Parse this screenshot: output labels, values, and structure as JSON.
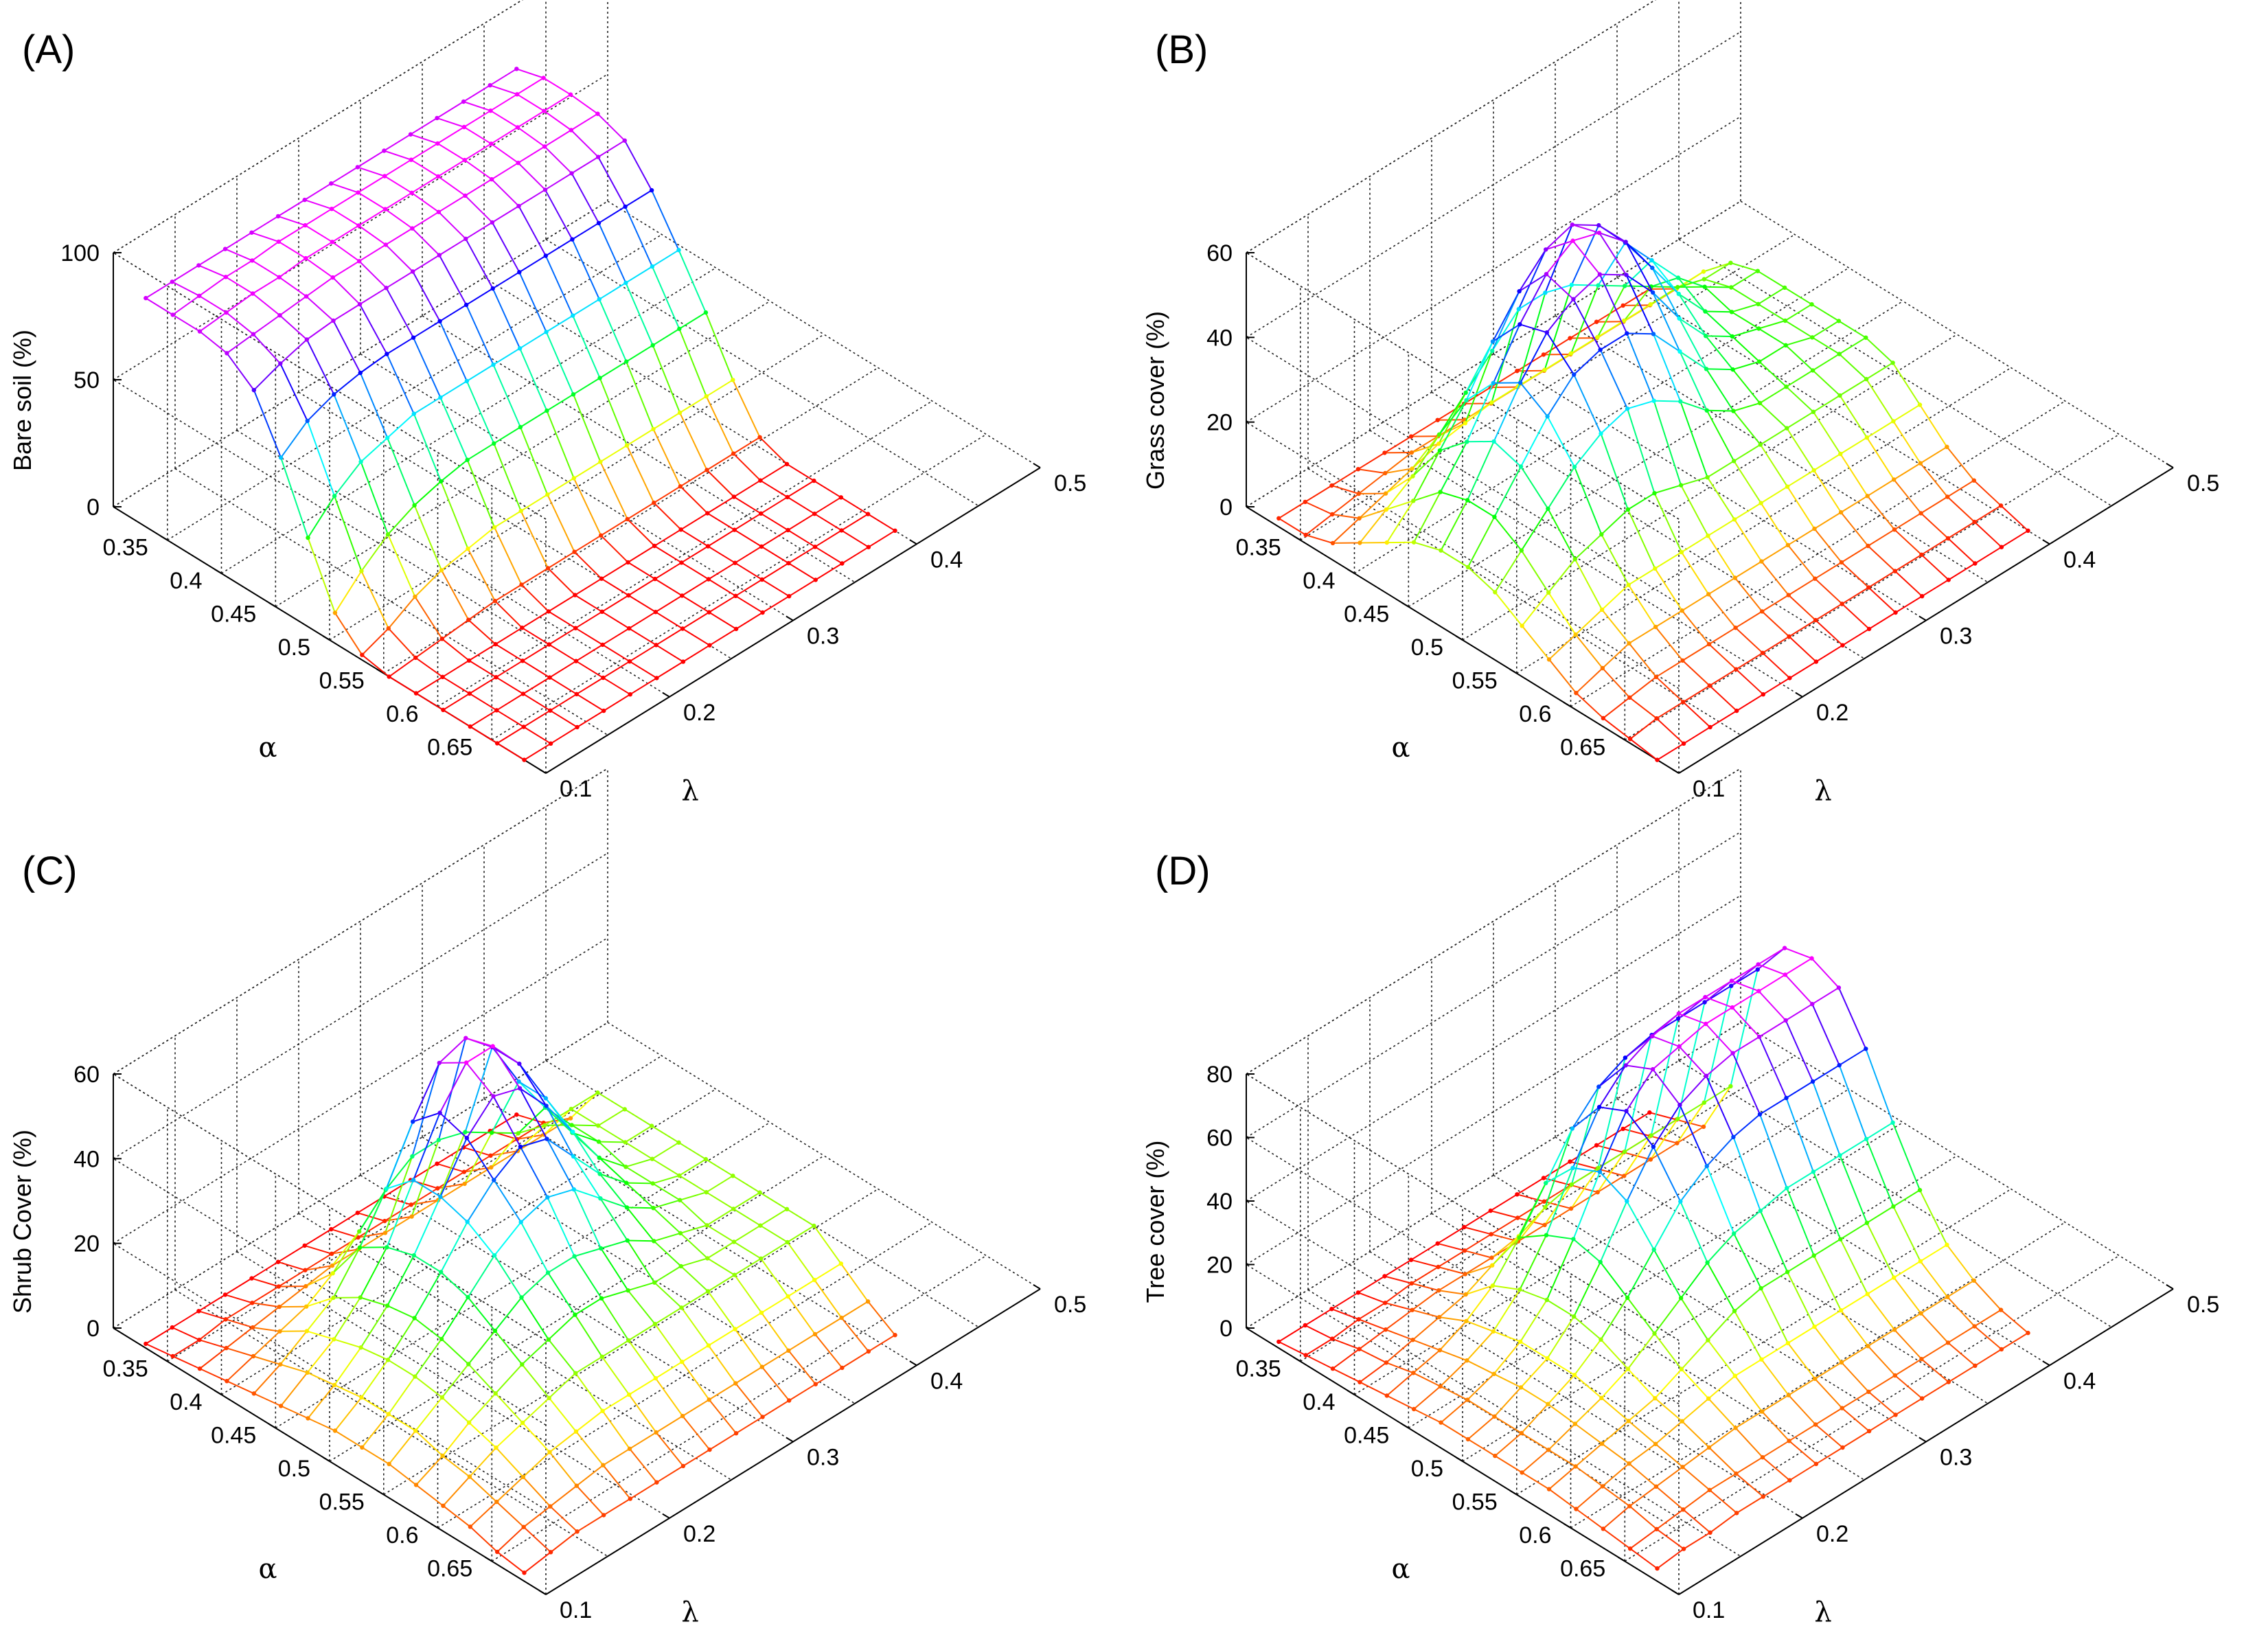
{
  "chart_data": [
    {
      "panel": "(A)",
      "type": "surface",
      "zlabel": "Bare soil (%)",
      "xlabel": "α",
      "ylabel": "λ",
      "alpha_ticks": [
        "0.35",
        "0.4",
        "0.45",
        "0.5",
        "0.55",
        "0.6",
        "0.65"
      ],
      "lambda_ticks": [
        "0.1",
        "0.2",
        "0.3",
        "0.4",
        "0.5"
      ],
      "z_ticks": [
        "0",
        "50",
        "100"
      ],
      "zlim": [
        0,
        100
      ],
      "alpha_range": [
        0.3,
        0.7
      ],
      "lambda_range": [
        0.1,
        0.5
      ],
      "grid": true,
      "surface_alpha": [
        0.33,
        0.68
      ],
      "surface_lambda": [
        0.1,
        0.4
      ],
      "grid_size": [
        15,
        15
      ],
      "z": [
        [
          90,
          90,
          90,
          90,
          90,
          90,
          90,
          90,
          90,
          90,
          90,
          90,
          90,
          90,
          90
        ],
        [
          90,
          91,
          92,
          92,
          93,
          93,
          93,
          93,
          93,
          93,
          93,
          93,
          93,
          93,
          93
        ],
        [
          90,
          91,
          92,
          92,
          93,
          93,
          93,
          93,
          93,
          93,
          93,
          93,
          93,
          93,
          93
        ],
        [
          88,
          89,
          90,
          91,
          92,
          92,
          92,
          92,
          92,
          92,
          92,
          92,
          92,
          92,
          92
        ],
        [
          80,
          84,
          87,
          88,
          88,
          88,
          88,
          88,
          88,
          88,
          88,
          88,
          88,
          88,
          88
        ],
        [
          60,
          68,
          72,
          74,
          75,
          75,
          75,
          75,
          75,
          75,
          75,
          75,
          75,
          75,
          75
        ],
        [
          35,
          45,
          52,
          55,
          58,
          58,
          58,
          58,
          58,
          58,
          58,
          58,
          58,
          58,
          58
        ],
        [
          12,
          22,
          30,
          35,
          38,
          40,
          40,
          40,
          40,
          40,
          40,
          40,
          40,
          40,
          40
        ],
        [
          2,
          6,
          12,
          16,
          18,
          20,
          20,
          20,
          20,
          20,
          20,
          20,
          20,
          20,
          20
        ],
        [
          0,
          1,
          2,
          3,
          4,
          4,
          4,
          4,
          4,
          4,
          4,
          4,
          4,
          4,
          4
        ],
        [
          0,
          0,
          0,
          0,
          0,
          0,
          0,
          0,
          0,
          0,
          0,
          0,
          0,
          0,
          0
        ],
        [
          0,
          0,
          0,
          0,
          0,
          0,
          0,
          0,
          0,
          0,
          0,
          0,
          0,
          0,
          0
        ],
        [
          0,
          0,
          0,
          0,
          0,
          0,
          0,
          0,
          0,
          0,
          0,
          0,
          0,
          0,
          0
        ],
        [
          0,
          0,
          0,
          0,
          0,
          0,
          0,
          0,
          0,
          0,
          0,
          0,
          0,
          0,
          0
        ],
        [
          0,
          0,
          0,
          0,
          0,
          0,
          0,
          0,
          0,
          0,
          0,
          0,
          0,
          0,
          0
        ]
      ]
    },
    {
      "panel": "(B)",
      "type": "surface",
      "zlabel": "Grass cover (%)",
      "xlabel": "α",
      "ylabel": "λ",
      "alpha_ticks": [
        "0.35",
        "0.4",
        "0.45",
        "0.5",
        "0.55",
        "0.6",
        "0.65"
      ],
      "lambda_ticks": [
        "0.1",
        "0.2",
        "0.3",
        "0.4",
        "0.5"
      ],
      "z_ticks": [
        "0",
        "20",
        "40",
        "60"
      ],
      "zlim": [
        0,
        60
      ],
      "alpha_range": [
        0.3,
        0.7
      ],
      "lambda_range": [
        0.1,
        0.5
      ],
      "grid": true,
      "surface_alpha": [
        0.33,
        0.68
      ],
      "surface_lambda": [
        0.1,
        0.4
      ],
      "grid_size": [
        15,
        15
      ],
      "z": [
        [
          2,
          2,
          2,
          2,
          2,
          2,
          2,
          2,
          2,
          2,
          2,
          2,
          2,
          2,
          2
        ],
        [
          2,
          3,
          4,
          5,
          6,
          6,
          6,
          6,
          6,
          6,
          6,
          6,
          6,
          6,
          6
        ],
        [
          4,
          6,
          8,
          10,
          12,
          13,
          14,
          14,
          14,
          14,
          14,
          14,
          14,
          14,
          14
        ],
        [
          8,
          12,
          16,
          22,
          28,
          34,
          40,
          40,
          38,
          34,
          30,
          26,
          22,
          20,
          20
        ],
        [
          12,
          18,
          26,
          34,
          44,
          52,
          58,
          60,
          56,
          48,
          40,
          32,
          26,
          22,
          22
        ],
        [
          16,
          24,
          32,
          42,
          52,
          60,
          64,
          62,
          56,
          46,
          36,
          28,
          24,
          22,
          22
        ],
        [
          18,
          26,
          36,
          46,
          54,
          58,
          60,
          56,
          48,
          38,
          30,
          26,
          24,
          22,
          22
        ],
        [
          18,
          26,
          34,
          42,
          48,
          50,
          50,
          46,
          38,
          30,
          26,
          24,
          24,
          22,
          22
        ],
        [
          16,
          22,
          28,
          34,
          38,
          40,
          38,
          34,
          28,
          24,
          22,
          22,
          22,
          22,
          22
        ],
        [
          12,
          16,
          20,
          22,
          24,
          24,
          22,
          20,
          20,
          20,
          20,
          20,
          20,
          20,
          20
        ],
        [
          8,
          10,
          12,
          14,
          14,
          14,
          14,
          14,
          14,
          14,
          14,
          14,
          14,
          14,
          14
        ],
        [
          4,
          6,
          8,
          8,
          8,
          8,
          8,
          8,
          8,
          8,
          8,
          8,
          8,
          8,
          8
        ],
        [
          2,
          3,
          4,
          4,
          4,
          4,
          4,
          4,
          4,
          4,
          4,
          4,
          4,
          4,
          4
        ],
        [
          1,
          2,
          2,
          2,
          2,
          2,
          2,
          2,
          2,
          2,
          2,
          2,
          2,
          2,
          2
        ],
        [
          0,
          0,
          0,
          0,
          0,
          0,
          0,
          0,
          0,
          0,
          0,
          0,
          0,
          0,
          0
        ]
      ]
    },
    {
      "panel": "(C)",
      "type": "surface",
      "zlabel": "Shrub Cover (%)",
      "xlabel": "α",
      "ylabel": "λ",
      "alpha_ticks": [
        "0.35",
        "0.4",
        "0.45",
        "0.5",
        "0.55",
        "0.6",
        "0.65"
      ],
      "lambda_ticks": [
        "0.1",
        "0.2",
        "0.3",
        "0.4",
        "0.5"
      ],
      "z_ticks": [
        "0",
        "20",
        "40",
        "60"
      ],
      "zlim": [
        0,
        60
      ],
      "alpha_range": [
        0.3,
        0.7
      ],
      "lambda_range": [
        0.1,
        0.5
      ],
      "grid": true,
      "surface_alpha": [
        0.33,
        0.68
      ],
      "surface_lambda": [
        0.1,
        0.4
      ],
      "grid_size": [
        15,
        15
      ],
      "z": [
        [
          1,
          1,
          1,
          1,
          1,
          1,
          1,
          1,
          1,
          1,
          1,
          1,
          1,
          1,
          1
        ],
        [
          2,
          2,
          3,
          3,
          3,
          3,
          3,
          3,
          3,
          3,
          3,
          3,
          3,
          3,
          3
        ],
        [
          3,
          4,
          5,
          6,
          7,
          8,
          8,
          8,
          8,
          8,
          8,
          8,
          8,
          8,
          8
        ],
        [
          4,
          6,
          8,
          10,
          14,
          20,
          26,
          30,
          30,
          28,
          24,
          20,
          18,
          18,
          18
        ],
        [
          5,
          8,
          12,
          16,
          24,
          34,
          46,
          56,
          58,
          52,
          40,
          30,
          22,
          18,
          18
        ],
        [
          6,
          10,
          14,
          20,
          28,
          40,
          52,
          60,
          60,
          52,
          40,
          28,
          22,
          18,
          18
        ],
        [
          7,
          11,
          16,
          22,
          30,
          40,
          50,
          56,
          54,
          46,
          36,
          26,
          20,
          18,
          18
        ],
        [
          8,
          12,
          17,
          23,
          30,
          38,
          44,
          48,
          46,
          38,
          30,
          24,
          20,
          18,
          18
        ],
        [
          8,
          12,
          17,
          22,
          28,
          34,
          38,
          40,
          38,
          32,
          26,
          22,
          20,
          18,
          18
        ],
        [
          8,
          12,
          16,
          20,
          24,
          28,
          30,
          30,
          28,
          26,
          22,
          20,
          18,
          18,
          18
        ],
        [
          7,
          10,
          14,
          17,
          20,
          22,
          24,
          24,
          22,
          20,
          20,
          18,
          18,
          18,
          18
        ],
        [
          6,
          9,
          12,
          14,
          16,
          18,
          18,
          18,
          18,
          18,
          18,
          18,
          18,
          18,
          18
        ],
        [
          5,
          7,
          9,
          11,
          12,
          13,
          13,
          13,
          13,
          13,
          13,
          13,
          13,
          13,
          13
        ],
        [
          3,
          5,
          6,
          7,
          8,
          8,
          8,
          8,
          8,
          8,
          8,
          8,
          8,
          8,
          8
        ],
        [
          2,
          3,
          4,
          4,
          4,
          4,
          4,
          4,
          4,
          4,
          4,
          4,
          4,
          4,
          4
        ]
      ]
    },
    {
      "panel": "(D)",
      "type": "surface",
      "zlabel": "Tree cover (%)",
      "xlabel": "α",
      "ylabel": "λ",
      "alpha_ticks": [
        "0.35",
        "0.4",
        "0.45",
        "0.5",
        "0.55",
        "0.6",
        "0.65"
      ],
      "lambda_ticks": [
        "0.1",
        "0.2",
        "0.3",
        "0.4",
        "0.5"
      ],
      "z_ticks": [
        "0",
        "20",
        "40",
        "60",
        "80"
      ],
      "zlim": [
        0,
        80
      ],
      "alpha_range": [
        0.3,
        0.7
      ],
      "lambda_range": [
        0.1,
        0.5
      ],
      "grid": true,
      "surface_alpha": [
        0.33,
        0.68
      ],
      "surface_lambda": [
        0.1,
        0.4
      ],
      "grid_size": [
        15,
        15
      ],
      "z": [
        [
          2,
          2,
          2,
          2,
          2,
          2,
          2,
          2,
          2,
          2,
          2,
          2,
          2,
          2,
          2
        ],
        [
          3,
          3,
          4,
          4,
          5,
          5,
          5,
          5,
          5,
          5,
          5,
          5,
          5,
          5,
          5
        ],
        [
          4,
          5,
          6,
          7,
          8,
          8,
          8,
          8,
          8,
          8,
          8,
          8,
          8,
          8,
          8
        ],
        [
          5,
          6,
          8,
          10,
          12,
          16,
          20,
          24,
          26,
          26,
          26,
          26,
          26,
          26,
          26
        ],
        [
          6,
          8,
          10,
          14,
          20,
          30,
          42,
          54,
          62,
          66,
          68,
          68,
          68,
          68,
          68
        ],
        [
          7,
          9,
          12,
          16,
          24,
          36,
          52,
          66,
          74,
          78,
          80,
          80,
          80,
          80,
          80
        ],
        [
          8,
          10,
          13,
          18,
          26,
          40,
          56,
          70,
          78,
          80,
          82,
          82,
          82,
          82,
          82
        ],
        [
          8,
          10,
          14,
          18,
          26,
          38,
          52,
          64,
          72,
          76,
          78,
          78,
          78,
          78,
          78
        ],
        [
          8,
          10,
          14,
          18,
          24,
          32,
          42,
          52,
          58,
          62,
          64,
          64,
          64,
          64,
          64
        ],
        [
          8,
          10,
          13,
          16,
          20,
          26,
          32,
          38,
          42,
          44,
          46,
          46,
          46,
          46,
          46
        ],
        [
          8,
          10,
          12,
          14,
          16,
          20,
          24,
          28,
          30,
          30,
          30,
          30,
          30,
          30,
          30
        ],
        [
          7,
          9,
          11,
          12,
          14,
          16,
          18,
          18,
          18,
          18,
          18,
          18,
          18,
          18,
          18
        ],
        [
          6,
          8,
          9,
          10,
          11,
          12,
          12,
          12,
          12,
          12,
          12,
          12,
          12,
          12,
          12
        ],
        [
          5,
          6,
          7,
          8,
          8,
          8,
          8,
          8,
          8,
          8,
          8,
          8,
          8,
          8,
          8
        ],
        [
          4,
          5,
          5,
          6,
          6,
          6,
          6,
          6,
          6,
          6,
          6,
          6,
          6,
          6,
          6
        ]
      ]
    }
  ]
}
